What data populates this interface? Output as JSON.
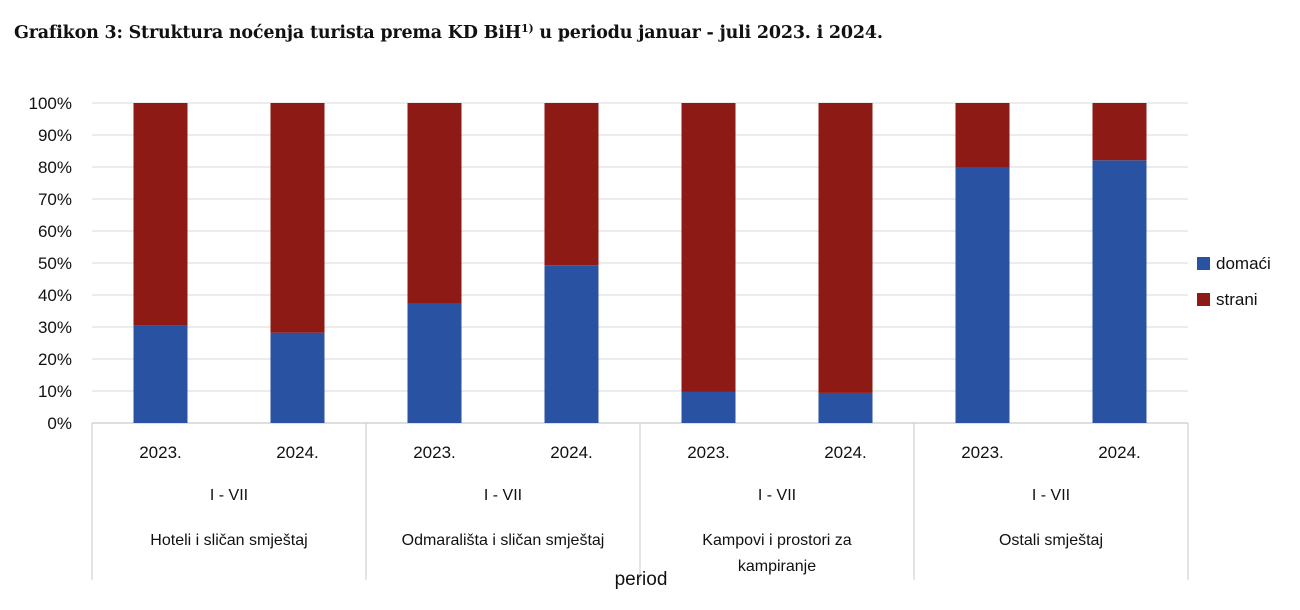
{
  "chart_data": {
    "type": "bar",
    "stacked": true,
    "title_main": "Grafikon 3: Struktura noćenja turista prema KD BiH",
    "title_sup": "1)",
    "title_rest": " u periodu januar - juli 2023. i 2024.",
    "xlabel": "period",
    "ylabel": "",
    "ylim": [
      0,
      100
    ],
    "yticks": [
      "0%",
      "10%",
      "20%",
      "30%",
      "40%",
      "50%",
      "60%",
      "70%",
      "80%",
      "90%",
      "100%"
    ],
    "grid": true,
    "legend_position": "right",
    "groups": [
      {
        "name": "Hoteli i sličan smještaj",
        "period": "I - VII",
        "categories": [
          "2023.",
          "2024."
        ]
      },
      {
        "name": "Odmarališta i sličan smještaj",
        "period": "I - VII",
        "categories": [
          "2023.",
          "2024."
        ]
      },
      {
        "name": "Kampovi i prostori za kampiranje",
        "period": "I - VII",
        "categories": [
          "2023.",
          "2024."
        ]
      },
      {
        "name": "Ostali smještaj",
        "period": "I - VII",
        "categories": [
          "2023.",
          "2024."
        ]
      }
    ],
    "series": [
      {
        "name": "domaći",
        "color": "#2952A3",
        "values": [
          30.5,
          28.2,
          37.5,
          49.3,
          9.7,
          9.4,
          80.0,
          82.1
        ]
      },
      {
        "name": "strani",
        "color": "#8E1A16",
        "values": [
          69.5,
          71.8,
          62.5,
          50.7,
          90.3,
          90.6,
          20.0,
          17.9
        ]
      }
    ]
  }
}
